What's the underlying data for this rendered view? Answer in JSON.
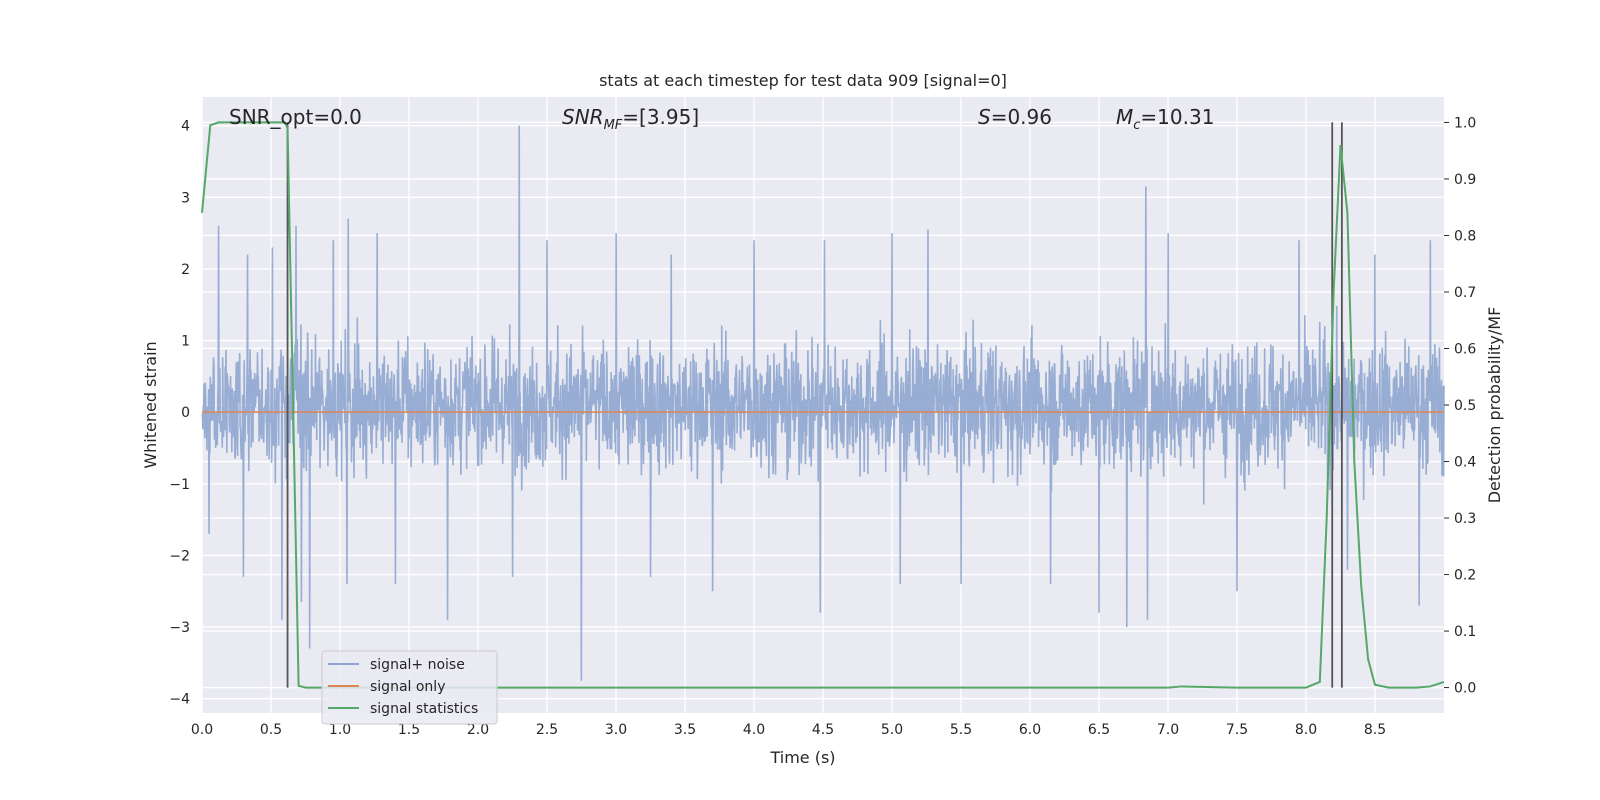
{
  "chart_data": {
    "type": "line",
    "title": "stats at each timestep for test data 909 [signal=0]",
    "xlabel": "Time (s)",
    "ylabel": "Whitened strain",
    "ylabel_right": "Detection probability/MF",
    "xlim": [
      0,
      9.0
    ],
    "ylim": [
      -4.2,
      4.4
    ],
    "ylim_right": [
      -0.045,
      1.045
    ],
    "x_ticks": [
      "0.0",
      "0.5",
      "1.0",
      "1.5",
      "2.0",
      "2.5",
      "3.0",
      "3.5",
      "4.0",
      "4.5",
      "5.0",
      "5.5",
      "6.0",
      "6.5",
      "7.0",
      "7.5",
      "8.0",
      "8.5"
    ],
    "y_ticks": [
      "−4",
      "−3",
      "−2",
      "−1",
      "0",
      "1",
      "2",
      "3",
      "4"
    ],
    "y_ticks_right": [
      "0.0",
      "0.1",
      "0.2",
      "0.3",
      "0.4",
      "0.5",
      "0.6",
      "0.7",
      "0.8",
      "0.9",
      "1.0"
    ],
    "grid": true,
    "annotations": {
      "snr_opt": "SNR_opt=0.0",
      "snr_mf_base": "SNR",
      "snr_mf_sub": "MF",
      "snr_mf_tail": "=[3.95]",
      "s_var": "S",
      "s_tail": "=0.96",
      "mc_var": "M",
      "mc_sub": "c",
      "mc_tail": "=10.31"
    },
    "legend": {
      "placement": "lower-left",
      "entries": [
        {
          "name": "signal+ noise",
          "color": "#8fa6cf"
        },
        {
          "name": "signal only",
          "color": "#dd8452"
        },
        {
          "name": "signal statistics",
          "color": "#55a868"
        }
      ]
    },
    "series": [
      {
        "name": "signal+ noise",
        "color": "#8fa6cf",
        "x_range": [
          0,
          9.0
        ],
        "envelope": {
          "core_low": -0.66,
          "core_high": 0.88,
          "typical_peak": 1.8,
          "typical_trough": -1.6
        },
        "peaks": [
          [
            0.12,
            2.6
          ],
          [
            0.33,
            2.2
          ],
          [
            0.51,
            2.3
          ],
          [
            0.68,
            2.6
          ],
          [
            0.95,
            2.4
          ],
          [
            1.06,
            2.7
          ],
          [
            1.27,
            2.5
          ],
          [
            1.78,
            2.7
          ],
          [
            2.3,
            4.0
          ],
          [
            2.5,
            2.4
          ],
          [
            3.0,
            2.5
          ],
          [
            3.4,
            2.2
          ],
          [
            4.0,
            2.4
          ],
          [
            4.51,
            2.4
          ],
          [
            5.0,
            2.5
          ],
          [
            5.26,
            2.55
          ],
          [
            5.5,
            2.4
          ],
          [
            6.15,
            2.4
          ],
          [
            6.5,
            2.8
          ],
          [
            6.84,
            3.15
          ],
          [
            7.0,
            2.5
          ],
          [
            7.5,
            2.4
          ],
          [
            7.95,
            2.4
          ],
          [
            8.5,
            2.2
          ],
          [
            8.9,
            2.4
          ]
        ],
        "troughs": [
          [
            0.05,
            -1.7
          ],
          [
            0.3,
            -2.3
          ],
          [
            0.58,
            -2.9
          ],
          [
            0.72,
            -2.65
          ],
          [
            0.78,
            -3.3
          ],
          [
            1.05,
            -2.4
          ],
          [
            1.4,
            -2.4
          ],
          [
            1.78,
            -2.9
          ],
          [
            2.25,
            -2.3
          ],
          [
            2.75,
            -3.75
          ],
          [
            3.25,
            -2.3
          ],
          [
            3.7,
            -2.5
          ],
          [
            4.48,
            -2.8
          ],
          [
            5.06,
            -2.4
          ],
          [
            5.5,
            -2.4
          ],
          [
            6.15,
            -2.4
          ],
          [
            6.5,
            -2.8
          ],
          [
            6.7,
            -3.0
          ],
          [
            6.85,
            -2.9
          ],
          [
            7.5,
            -2.5
          ],
          [
            8.3,
            -2.2
          ],
          [
            8.82,
            -2.7
          ]
        ]
      },
      {
        "name": "signal only",
        "color": "#dd8452",
        "x": [
          0,
          9.0
        ],
        "y": [
          0,
          0
        ]
      },
      {
        "name": "signal statistics",
        "color": "#55a868",
        "axis": "right",
        "x": [
          0.0,
          0.06,
          0.12,
          0.2,
          0.3,
          0.4,
          0.5,
          0.55,
          0.6,
          0.62,
          0.66,
          0.7,
          0.75,
          1.0,
          2.0,
          3.0,
          4.0,
          5.0,
          6.0,
          7.0,
          7.1,
          7.5,
          8.0,
          8.1,
          8.15,
          8.2,
          8.25,
          8.3,
          8.35,
          8.4,
          8.45,
          8.5,
          8.6,
          8.8,
          8.9,
          9.0
        ],
        "y": [
          0.84,
          0.995,
          1.0,
          1.0,
          1.0,
          1.0,
          1.0,
          1.0,
          1.0,
          0.99,
          0.5,
          0.003,
          0.0,
          0.0,
          0.0,
          0.0,
          0.0,
          0.0,
          0.0,
          0.0,
          0.002,
          0.0,
          0.0,
          0.01,
          0.3,
          0.7,
          0.96,
          0.84,
          0.4,
          0.18,
          0.05,
          0.005,
          0.0,
          0.0,
          0.002,
          0.01
        ]
      }
    ],
    "markers": {
      "color": "#555555",
      "x": [
        0.62,
        8.19,
        8.26
      ],
      "y_right_range": [
        0.0,
        1.0
      ]
    }
  }
}
